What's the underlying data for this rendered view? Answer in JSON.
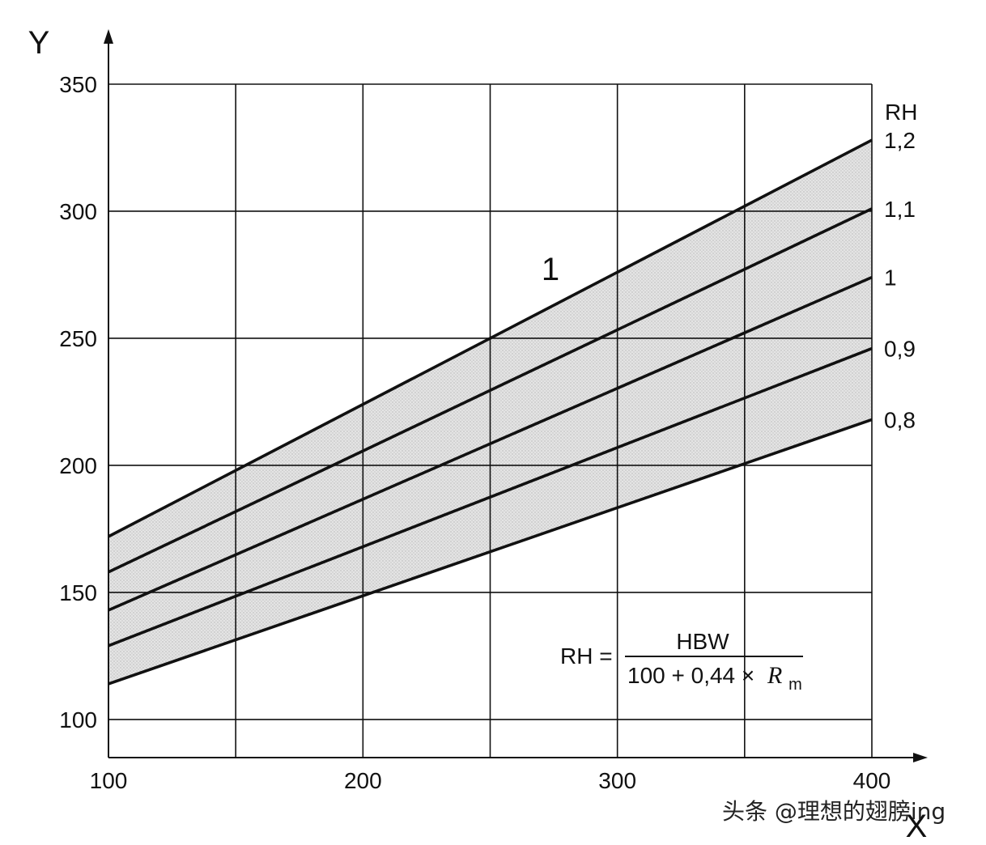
{
  "chart_data": {
    "type": "line",
    "x_axis": {
      "letter": "X",
      "range": [
        100,
        400
      ],
      "ticks": [
        "100",
        "200",
        "300",
        "400"
      ]
    },
    "y_axis": {
      "letter": "Y",
      "range": [
        85,
        350
      ],
      "ticks": [
        "100",
        "150",
        "200",
        "250",
        "300",
        "350"
      ]
    },
    "grid": true,
    "vertical_gridlines_at": [
      100,
      150,
      200,
      250,
      300,
      350,
      400
    ],
    "horizontal_gridlines_at": [
      100,
      150,
      200,
      250,
      300,
      350
    ],
    "legend_title": "RH",
    "series": [
      {
        "name": "1,2",
        "x": [
          100,
          400
        ],
        "y": [
          172,
          328
        ]
      },
      {
        "name": "1,1",
        "x": [
          100,
          400
        ],
        "y": [
          158,
          301
        ]
      },
      {
        "name": "1",
        "x": [
          100,
          400
        ],
        "y": [
          143,
          274
        ]
      },
      {
        "name": "0,9",
        "x": [
          100,
          400
        ],
        "y": [
          129,
          246
        ]
      },
      {
        "name": "0,8",
        "x": [
          100,
          400
        ],
        "y": [
          114,
          218
        ]
      }
    ],
    "shaded_region": {
      "between": [
        "1,2",
        "0,8"
      ],
      "label": "1",
      "fill": "#d9d9d9"
    },
    "annotations": {
      "region_label": "1",
      "formula_lhs": "RH =",
      "formula_numerator": "HBW",
      "formula_denominator_prefix": "100 + 0,44 ×",
      "formula_denominator_symbol": "R",
      "formula_denominator_subscript": "m"
    },
    "watermark": "头条 @理想的翅膀ing",
    "line_color": "#111111"
  }
}
